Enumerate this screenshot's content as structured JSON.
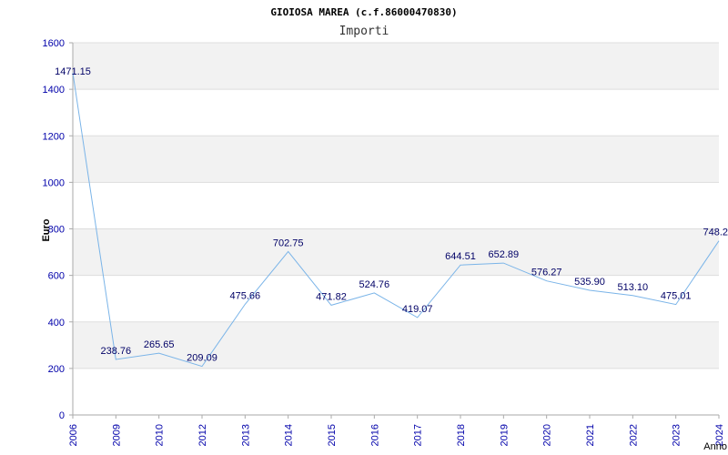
{
  "chart_data": {
    "type": "line",
    "title": "GIOIOSA MAREA (c.f.86000470830)",
    "subtitle": "Importi",
    "xlabel": "Anno",
    "ylabel": "Euro",
    "ylim": [
      0,
      1600
    ],
    "yticks": [
      "0",
      "200",
      "400",
      "600",
      "800",
      "1000",
      "1200",
      "1400",
      "1600"
    ],
    "grid": true,
    "categories": [
      "2006",
      "2009",
      "2010",
      "2012",
      "2013",
      "2014",
      "2015",
      "2016",
      "2017",
      "2018",
      "2019",
      "2020",
      "2021",
      "2022",
      "2023",
      "2024"
    ],
    "values": [
      1471.15,
      238.76,
      265.65,
      209.09,
      475.66,
      702.75,
      471.82,
      524.76,
      419.07,
      644.51,
      652.89,
      576.27,
      535.9,
      513.1,
      475.01,
      748.2
    ],
    "value_labels": [
      "1471.15",
      "238.76",
      "265.65",
      "209.09",
      "475.66",
      "702.75",
      "471.82",
      "524.76",
      "419.07",
      "644.51",
      "652.89",
      "576.27",
      "535.90",
      "513.10",
      "475.01",
      "748.2"
    ],
    "colors": {
      "line": "#7ab4e8",
      "band": "#f2f2f2",
      "grid": "#dddddd",
      "axis": "#aaaaaa"
    }
  }
}
